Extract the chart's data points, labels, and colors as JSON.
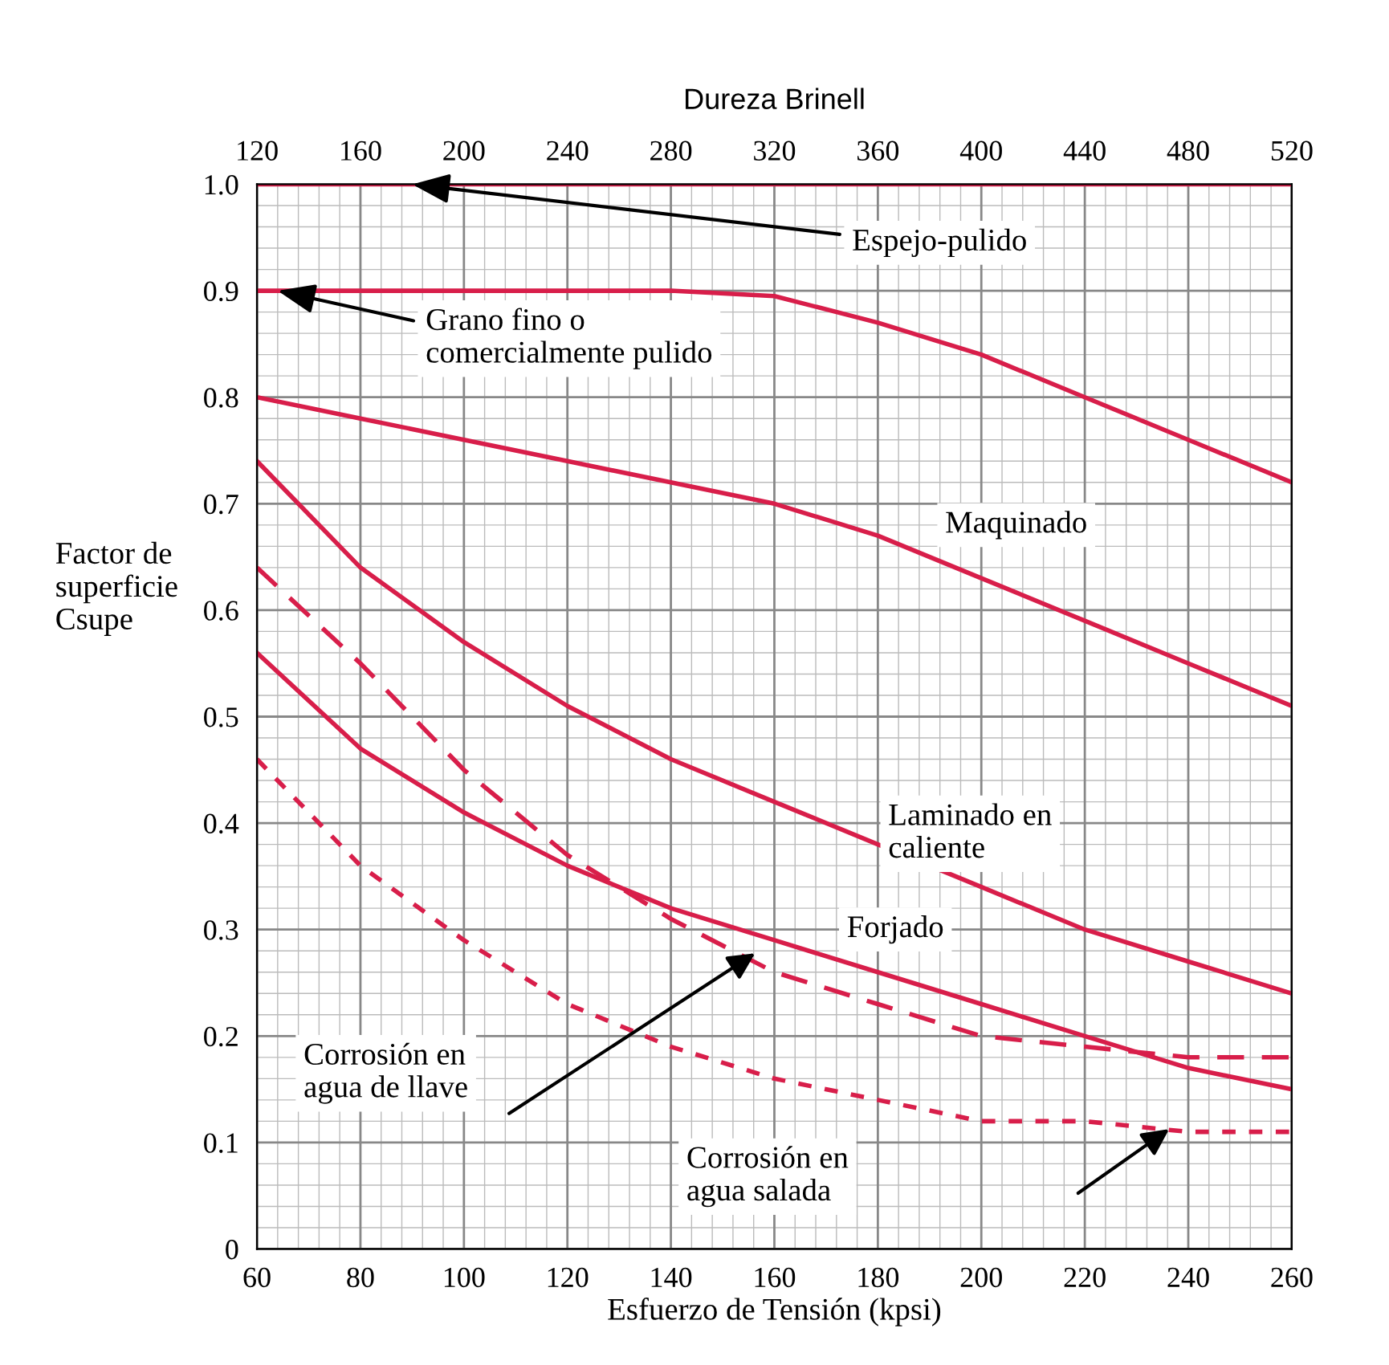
{
  "chart_data": {
    "type": "line",
    "xlabel": "Esfuerzo de Tensión (kpsi)",
    "ylabel": "Factor de\nsuperficie\nCsupe",
    "x2label": "Dureza Brinell",
    "x": [
      60,
      80,
      100,
      120,
      140,
      160,
      180,
      200,
      220,
      240,
      260
    ],
    "series": [
      {
        "color": "#d81e4a",
        "line_style": "solid",
        "values": [
          1.0,
          1.0,
          1.0,
          1.0,
          1.0,
          1.0,
          1.0,
          1.0,
          1.0,
          1.0,
          1.0
        ]
      },
      {
        "color": "#d81e4a",
        "line_style": "solid",
        "values": [
          0.9,
          0.9,
          0.9,
          0.9,
          0.9,
          0.895,
          0.87,
          0.84,
          0.8,
          0.76,
          0.72
        ]
      },
      {
        "color": "#d81e4a",
        "line_style": "solid",
        "values": [
          0.8,
          0.78,
          0.76,
          0.74,
          0.72,
          0.7,
          0.67,
          0.63,
          0.59,
          0.55,
          0.51
        ]
      },
      {
        "color": "#d81e4a",
        "line_style": "solid",
        "values": [
          0.74,
          0.64,
          0.57,
          0.51,
          0.46,
          0.42,
          0.38,
          0.34,
          0.3,
          0.27,
          0.24
        ]
      },
      {
        "color": "#d81e4a",
        "line_style": "solid",
        "values": [
          0.56,
          0.47,
          0.41,
          0.36,
          0.32,
          0.29,
          0.26,
          0.23,
          0.2,
          0.17,
          0.15
        ]
      },
      {
        "color": "#d81e4a",
        "line_style": "dashed",
        "values": [
          0.64,
          0.55,
          0.45,
          0.37,
          0.31,
          0.26,
          0.23,
          0.2,
          0.19,
          0.18,
          0.18
        ]
      },
      {
        "color": "#d81e4a",
        "line_style": "dotted",
        "values": [
          0.46,
          0.36,
          0.29,
          0.23,
          0.19,
          0.16,
          0.14,
          0.12,
          0.12,
          0.11,
          0.11
        ]
      }
    ],
    "xlim": [
      60,
      260
    ],
    "xticks": [
      60,
      80,
      100,
      120,
      140,
      160,
      180,
      200,
      220,
      240,
      260
    ],
    "x2lim": [
      120,
      520
    ],
    "x2ticks": [
      120,
      160,
      200,
      240,
      280,
      320,
      360,
      400,
      440,
      480,
      520
    ],
    "ylim": [
      0,
      1.0
    ],
    "yticks": [
      {
        "value": 0,
        "label": "0"
      },
      0.1,
      0.2,
      0.3,
      0.4,
      0.5,
      0.6,
      0.7,
      0.8,
      0.9,
      {
        "value": 1.0,
        "label": "1.0"
      }
    ],
    "grid": true,
    "legend": false,
    "marker": "none",
    "annotations": [
      {
        "text": "Espejo-pulido",
        "x": 90,
        "y": 1.0
      },
      {
        "text": "Grano fino o\ncomercialmente pulido",
        "x": 64,
        "y": 0.9
      },
      "Maquinado",
      "Laminado en\ncaliente",
      "Forjado",
      "Corrosión en\nagua de llave",
      "Corrosión en\nagua salada"
    ]
  }
}
